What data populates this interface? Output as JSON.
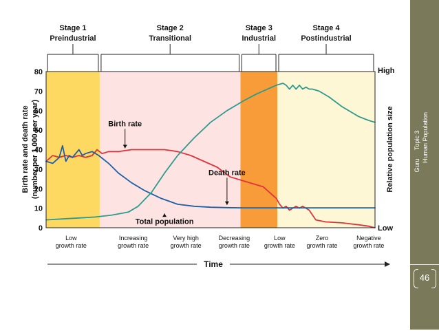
{
  "slide": {
    "side_author": "Guru",
    "side_topic": "Topic 3",
    "side_subject": "Human Population",
    "page_number": "46",
    "side_color": "#7a7a5a"
  },
  "chart_data": {
    "type": "line",
    "title": "",
    "xlabel": "Time",
    "ylabel_line1": "Birth rate and death rate",
    "ylabel_line2": "(number per 1,000 per year)",
    "y2label": "Relative population size",
    "y2_high": "High",
    "y2_low": "Low",
    "ylim": [
      0,
      80
    ],
    "xlim": [
      0,
      100
    ],
    "y_ticks": [
      "0",
      "10",
      "20",
      "30",
      "40",
      "50",
      "60",
      "70",
      "80"
    ],
    "grid": false,
    "stages": [
      {
        "name": "Stage 1",
        "sub": "Preindustrial",
        "x_start": 0,
        "x_end": 16.3,
        "color": "#fdd961"
      },
      {
        "name": "Stage 2",
        "sub": "Transitional",
        "x_start": 16.3,
        "x_end": 59.1,
        "color": "#fde4e2"
      },
      {
        "name": "Stage 3",
        "sub": "Industrial",
        "x_start": 59.1,
        "x_end": 70.3,
        "color": "#f79c39"
      },
      {
        "name": "Stage 4",
        "sub": "Postindustrial",
        "x_start": 70.3,
        "x_end": 100,
        "color": "#fdf7d6"
      }
    ],
    "growth_labels": [
      {
        "line1": "Low",
        "line2": "growth rate",
        "x": 7.6
      },
      {
        "line1": "Increasing",
        "line2": "growth rate",
        "x": 26.5
      },
      {
        "line1": "Very high",
        "line2": "growth rate",
        "x": 42.5
      },
      {
        "line1": "Decreasing",
        "line2": "growth rate",
        "x": 57.2
      },
      {
        "line1": "Low",
        "line2": "growth rate",
        "x": 71.0
      },
      {
        "line1": "Zero",
        "line2": "growth rate",
        "x": 83.9
      },
      {
        "line1": "Negative",
        "line2": "growth rate",
        "x": 98.1
      }
    ],
    "series": [
      {
        "name": "Birth rate",
        "color": "#e0333b",
        "x": [
          0,
          2,
          4,
          6,
          8,
          10,
          12,
          14,
          15.5,
          17,
          19,
          22,
          26,
          30,
          36,
          40,
          44,
          48,
          52,
          56,
          60,
          64,
          66,
          68,
          70,
          71,
          72,
          73,
          74,
          75,
          76,
          77,
          78,
          79,
          80,
          82,
          85,
          90,
          95,
          98,
          100
        ],
        "y": [
          34,
          37,
          36,
          37,
          36,
          37,
          36,
          37,
          40,
          38,
          39,
          39,
          40,
          40,
          40,
          39,
          37,
          34,
          31,
          26,
          24,
          22,
          21,
          18,
          15,
          12,
          10,
          11,
          9,
          10,
          11,
          10,
          11,
          10,
          9,
          4,
          3,
          2.5,
          1.5,
          0.8,
          0
        ]
      },
      {
        "name": "Death rate",
        "color": "#1c5ea8",
        "x": [
          0,
          2,
          4,
          5,
          6,
          7,
          8,
          9,
          10,
          11,
          12,
          14,
          16,
          19,
          22,
          26,
          30,
          35,
          40,
          45,
          50,
          55,
          60,
          70,
          80,
          90,
          100
        ],
        "y": [
          34,
          33,
          36,
          42,
          34,
          37,
          36,
          38,
          40,
          37,
          38,
          39,
          37,
          33,
          28,
          23,
          19,
          15,
          12,
          11,
          10.5,
          10.3,
          10.2,
          10.2,
          10.2,
          10.2,
          10.2
        ]
      },
      {
        "name": "Total population",
        "color": "#2e9a8d",
        "x": [
          0,
          5,
          10,
          15,
          20,
          25,
          28,
          32,
          36,
          40,
          45,
          50,
          55,
          60,
          64,
          68,
          70,
          72,
          73,
          74,
          75,
          76,
          77,
          78,
          79,
          80,
          81,
          83,
          86,
          90,
          92,
          95,
          98,
          100
        ],
        "y": [
          4,
          4.5,
          5,
          5.5,
          6.5,
          8,
          11,
          18,
          28,
          37,
          46,
          54,
          60,
          65,
          68.5,
          71.5,
          73,
          74,
          73,
          71,
          73,
          71,
          73,
          71,
          72,
          71,
          71,
          70,
          67,
          62,
          60,
          57,
          55,
          54
        ]
      }
    ],
    "annotations": [
      {
        "text": "Birth rate",
        "x": 24,
        "y": 52,
        "arrow_to_y": 40
      },
      {
        "text": "Death rate",
        "x": 55,
        "y": 27,
        "arrow_to_y": 11
      },
      {
        "text": "Total population",
        "x": 36,
        "y": 2,
        "arrow_to_y": 8
      }
    ]
  }
}
